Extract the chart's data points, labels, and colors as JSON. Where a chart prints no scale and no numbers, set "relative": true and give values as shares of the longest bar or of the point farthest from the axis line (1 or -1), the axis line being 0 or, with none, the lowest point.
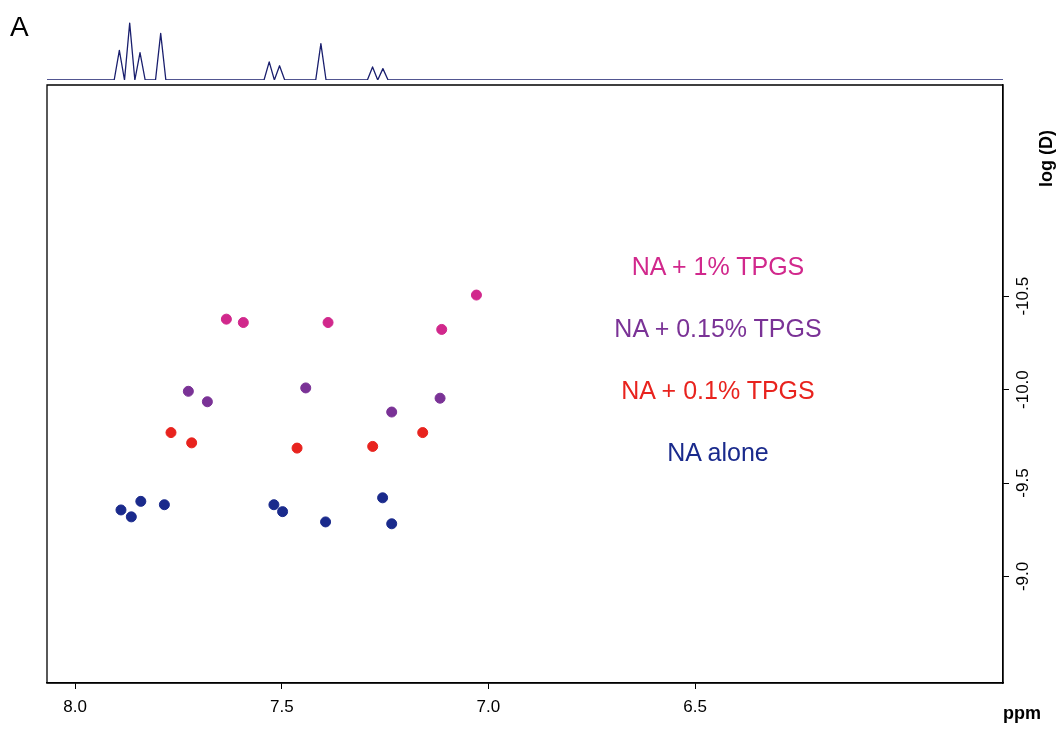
{
  "chart_data": [
    {
      "type": "line",
      "relative": true,
      "annotations": [
        "A"
      ],
      "categories": [
        null,
        null,
        null,
        null,
        null,
        null,
        null,
        null,
        null,
        null,
        null,
        null,
        null,
        null,
        null,
        null,
        null,
        null,
        null,
        null,
        null,
        null,
        null,
        null,
        null,
        null,
        null,
        null,
        null,
        null,
        null,
        null,
        null,
        null,
        null,
        null,
        null,
        null,
        null,
        null,
        null,
        null,
        null,
        null,
        null,
        null,
        null,
        null,
        null,
        null,
        null,
        null,
        null,
        null,
        null,
        null,
        null,
        null,
        null,
        null,
        null,
        null,
        null,
        null,
        null,
        null,
        null,
        null,
        null,
        null,
        null,
        null,
        null,
        null,
        null,
        null,
        null,
        null,
        null,
        null,
        null,
        null,
        null,
        null,
        null,
        null,
        null,
        null,
        null,
        null,
        null,
        null,
        null,
        null,
        null,
        null,
        null,
        null,
        null,
        null,
        null,
        null,
        null,
        null,
        null,
        null,
        null,
        null,
        null,
        null,
        null,
        null,
        null,
        null,
        null,
        null,
        null,
        null,
        null,
        null,
        null,
        null,
        null,
        null,
        null,
        null,
        null,
        null,
        null,
        null,
        null,
        null,
        null,
        null,
        null,
        null,
        null,
        null,
        null,
        null,
        null,
        null,
        null,
        null,
        null,
        null,
        null,
        null,
        null,
        null,
        null,
        null,
        null,
        null,
        null,
        null,
        null,
        null,
        null,
        null,
        null,
        null,
        null,
        null,
        null,
        null,
        null,
        null,
        null,
        null,
        null,
        null,
        null,
        null,
        null,
        null,
        null,
        null,
        null,
        null,
        null,
        null,
        null,
        null,
        null,
        null
      ],
      "series": [
        {
          "color": "#1a1f6e",
          "values": [
            0,
            0,
            0,
            0,
            0,
            0,
            0,
            0,
            0,
            0,
            0,
            0,
            0,
            0,
            0.52,
            0,
            1,
            0,
            0.48,
            0,
            0,
            0,
            0.82,
            0,
            0,
            0,
            0,
            0,
            0,
            0,
            0,
            0,
            0,
            0,
            0,
            0,
            0,
            0,
            0,
            0,
            0,
            0,
            0,
            0.32,
            0,
            0.25,
            0,
            0,
            0,
            0,
            0,
            0,
            0,
            0.64,
            0,
            0,
            0,
            0,
            0,
            0,
            0,
            0,
            0,
            0.23,
            0,
            0.2,
            0,
            0,
            0,
            0,
            0,
            0,
            0,
            0,
            0,
            0,
            0,
            0,
            0,
            0,
            0,
            0,
            0,
            0,
            0,
            0,
            0,
            0,
            0,
            0,
            0,
            0,
            0,
            0,
            0,
            0,
            0,
            0,
            0,
            0,
            0,
            0,
            0,
            0,
            0,
            0,
            0,
            0,
            0,
            0,
            0,
            0,
            0,
            0,
            0,
            0,
            0,
            0,
            0,
            0,
            0,
            0,
            0,
            0,
            0,
            0,
            0,
            0,
            0,
            0,
            0,
            0,
            0,
            0,
            0,
            0,
            0,
            0,
            0,
            0,
            0,
            0,
            0,
            0,
            0,
            0,
            0,
            0,
            0,
            0,
            0,
            0,
            0,
            0,
            0,
            0,
            0,
            0,
            0,
            0,
            0,
            0,
            0,
            0,
            0,
            0,
            0,
            0,
            0,
            0,
            0,
            0,
            0,
            0,
            0,
            0,
            0,
            0,
            0,
            0,
            0,
            0,
            0,
            0,
            0,
            0
          ]
        }
      ]
    },
    {
      "type": "scatter",
      "xlabel": "ppm",
      "y2label": "log (D)",
      "marker": "circle",
      "xlim": [
        8.068,
        5.755
      ],
      "xticks": [
        {
          "value": 8.0,
          "label": "8.0"
        },
        7.5,
        {
          "value": 7.0,
          "label": "7.0"
        },
        6.5
      ],
      "ylim": [
        -8.43,
        -11.63
      ],
      "yticks": [
        {
          "value": -9.0,
          "label": "-9.0"
        },
        -9.5,
        {
          "value": -10.0,
          "label": "-10.0"
        },
        -10.5
      ],
      "series": [
        {
          "name": "NA alone",
          "color": "#1a2a8c",
          "x": [
            7.889,
            7.864,
            7.841,
            7.784,
            7.519,
            7.498,
            7.394,
            7.256,
            7.234
          ],
          "values": [
            -9.356,
            -9.319,
            -9.402,
            -9.384,
            -9.384,
            -9.347,
            -9.292,
            -9.421,
            -9.282
          ]
        },
        {
          "name": "NA + 0.1% TPGS",
          "color": "#e8231e",
          "x": [
            7.768,
            7.718,
            7.463,
            7.28,
            7.159
          ],
          "values": [
            -9.77,
            -9.715,
            -9.687,
            -9.696,
            -9.77
          ]
        },
        {
          "name": "NA + 0.15% TPGS",
          "color": "#7a3296",
          "x": [
            7.726,
            7.68,
            7.442,
            7.234,
            7.117
          ],
          "values": [
            -9.991,
            -9.935,
            -10.009,
            -9.88,
            -9.954
          ]
        },
        {
          "name": "NA + 1% TPGS",
          "color": "#d1288c",
          "x": [
            7.634,
            7.593,
            7.388,
            7.113,
            7.029
          ],
          "values": [
            -10.377,
            -10.359,
            -10.359,
            -10.322,
            -10.506
          ]
        }
      ]
    }
  ]
}
